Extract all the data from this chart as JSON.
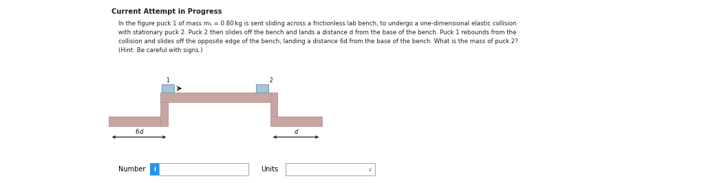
{
  "title": "Current Attempt in Progress",
  "para_line1": "In the figure puck 1 of mass m₁ = 0.80 kg is sent sliding across a frictionless lab bench, to undergo a one-dimensional elastic collision",
  "para_line2": "with stationary puck 2. Puck 2 then slides off the bench and lands a distance d from the base of the bench. Puck 1 rebounds from the",
  "para_line3": "collision and slides off the opposite edge of the bench, landing a distance 6d from the base of the bench. What is the mass of puck 2?",
  "para_line4": "(Hint: Be careful with signs.)",
  "bench_color": "#c9a5a2",
  "bench_edge_color": "#b09090",
  "puck_color": "#a8c4d4",
  "puck_edge_color": "#7a9fb0",
  "bg_color": "#ffffff",
  "text_color": "#222222",
  "label_6d": "6  d",
  "label_d": "d",
  "number_label": "Number",
  "units_label": "Units",
  "blue_btn_color": "#2196f3"
}
